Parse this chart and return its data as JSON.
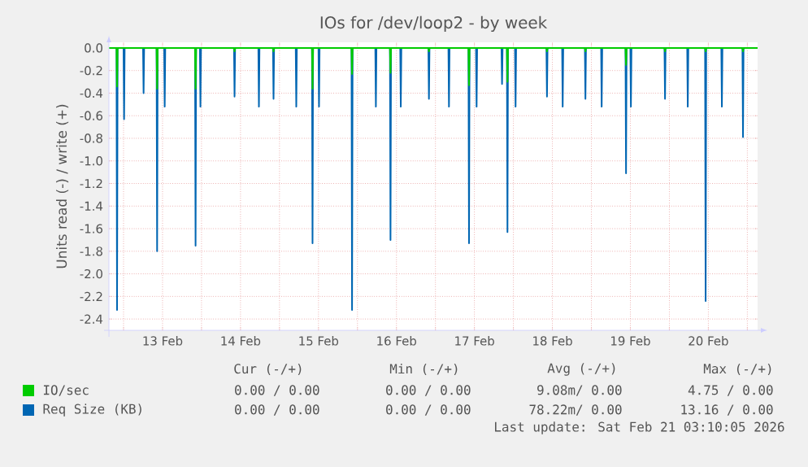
{
  "chart_data": {
    "type": "line",
    "title": "IOs for /dev/loop2 - by week",
    "ylabel": "Units read (-) / write (+)",
    "xlim": [
      "2026-02-12T19:30",
      "2026-02-21T03:10"
    ],
    "ylim": [
      -2.5,
      0.05
    ],
    "yticks": [
      {
        "value": 0,
        "label": "0.0"
      },
      -0.2,
      -0.4,
      -0.6,
      -0.8,
      {
        "value": -1,
        "label": "-1.0"
      },
      -1.2,
      -1.4,
      -1.6,
      -1.8,
      {
        "value": -2,
        "label": "-2.0"
      },
      -2.2,
      -2.4
    ],
    "xticks": [
      {
        "value": "2026-02-13T00:00",
        "label": null
      },
      {
        "value": "2026-02-13T12:00",
        "label": "13 Feb"
      },
      {
        "value": "2026-02-14T00:00",
        "label": null
      },
      {
        "value": "2026-02-14T12:00",
        "label": "14 Feb"
      },
      {
        "value": "2026-02-15T00:00",
        "label": null
      },
      {
        "value": "2026-02-15T12:00",
        "label": "15 Feb"
      },
      {
        "value": "2026-02-16T00:00",
        "label": null
      },
      {
        "value": "2026-02-16T12:00",
        "label": "16 Feb"
      },
      {
        "value": "2026-02-17T00:00",
        "label": null
      },
      {
        "value": "2026-02-17T12:00",
        "label": "17 Feb"
      },
      {
        "value": "2026-02-18T00:00",
        "label": null
      },
      {
        "value": "2026-02-18T12:00",
        "label": "18 Feb"
      },
      {
        "value": "2026-02-19T00:00",
        "label": null
      },
      {
        "value": "2026-02-19T12:00",
        "label": "19 Feb"
      },
      {
        "value": "2026-02-20T00:00",
        "label": null
      },
      {
        "value": "2026-02-20T12:00",
        "label": "20 Feb"
      },
      {
        "value": "2026-02-21T00:00",
        "label": null
      }
    ],
    "grid": true,
    "legend": "bottom",
    "line_style": "solid",
    "series": [
      {
        "name": "IO/sec",
        "color": "#00cc00",
        "x": [
          "2026-02-12T19:30",
          "2026-02-12T21:50",
          "2026-02-12T22:00",
          "2026-02-12T22:10",
          "2026-02-13T10:10",
          "2026-02-13T10:20",
          "2026-02-13T10:30",
          "2026-02-13T22:00",
          "2026-02-13T22:10",
          "2026-02-13T22:20",
          "2026-02-14T10:00",
          "2026-02-14T10:10",
          "2026-02-14T10:20",
          "2026-02-14T22:00",
          "2026-02-14T22:10",
          "2026-02-14T22:20",
          "2026-02-15T10:00",
          "2026-02-15T10:10",
          "2026-02-15T10:20",
          "2026-02-15T22:10",
          "2026-02-15T22:20",
          "2026-02-15T22:30",
          "2026-02-16T10:00",
          "2026-02-16T10:10",
          "2026-02-16T10:20",
          "2026-02-16T21:50",
          "2026-02-16T22:00",
          "2026-02-16T22:10",
          "2026-02-17T10:10",
          "2026-02-17T10:20",
          "2026-02-17T10:30",
          "2026-02-17T22:00",
          "2026-02-17T22:10",
          "2026-02-17T22:20",
          "2026-02-18T10:10",
          "2026-02-18T10:20",
          "2026-02-18T10:30",
          "2026-02-18T22:00",
          "2026-02-18T22:10",
          "2026-02-18T22:20",
          "2026-02-19T10:30",
          "2026-02-19T10:40",
          "2026-02-19T10:50",
          "2026-02-19T22:30",
          "2026-02-19T22:40",
          "2026-02-19T22:50",
          "2026-02-20T11:00",
          "2026-02-20T11:10",
          "2026-02-20T11:20",
          "2026-02-20T22:30",
          "2026-02-20T22:40",
          "2026-02-20T22:50",
          "2026-02-21T03:10"
        ],
        "values": [
          0,
          0,
          -0.34,
          0,
          0,
          -0.36,
          0,
          0,
          -0.36,
          0,
          0,
          -0.03,
          0,
          0,
          -0.03,
          0,
          0,
          -0.36,
          0,
          0,
          -0.23,
          0,
          0,
          -0.22,
          0,
          0,
          -0.03,
          0,
          0,
          -0.33,
          0,
          0,
          -0.3,
          0,
          0,
          -0.03,
          0,
          0,
          -0.03,
          0,
          0,
          -0.15,
          0,
          0,
          -0.03,
          0,
          0,
          -0.03,
          0,
          0,
          -0.03,
          0,
          0
        ]
      },
      {
        "name": "Req Size (KB)",
        "color": "#0066b3",
        "x": [
          "2026-02-12T19:30",
          "2026-02-12T21:50",
          "2026-02-12T22:00",
          "2026-02-12T22:10",
          "2026-02-13T00:00",
          "2026-02-13T00:10",
          "2026-02-13T00:20",
          "2026-02-13T06:00",
          "2026-02-13T06:10",
          "2026-02-13T06:20",
          "2026-02-13T10:10",
          "2026-02-13T10:20",
          "2026-02-13T10:30",
          "2026-02-13T12:30",
          "2026-02-13T12:40",
          "2026-02-13T12:50",
          "2026-02-13T22:00",
          "2026-02-13T22:10",
          "2026-02-13T22:20",
          "2026-02-13T23:30",
          "2026-02-13T23:40",
          "2026-02-13T23:50",
          "2026-02-14T10:00",
          "2026-02-14T10:10",
          "2026-02-14T10:20",
          "2026-02-14T17:30",
          "2026-02-14T17:40",
          "2026-02-14T17:50",
          "2026-02-14T22:00",
          "2026-02-14T22:10",
          "2026-02-14T22:20",
          "2026-02-15T05:00",
          "2026-02-15T05:10",
          "2026-02-15T05:20",
          "2026-02-15T10:00",
          "2026-02-15T10:10",
          "2026-02-15T10:20",
          "2026-02-15T12:00",
          "2026-02-15T12:10",
          "2026-02-15T12:20",
          "2026-02-15T22:10",
          "2026-02-15T22:20",
          "2026-02-15T22:30",
          "2026-02-16T05:30",
          "2026-02-16T05:40",
          "2026-02-16T05:50",
          "2026-02-16T10:00",
          "2026-02-16T10:10",
          "2026-02-16T10:20",
          "2026-02-16T13:10",
          "2026-02-16T13:20",
          "2026-02-16T13:30",
          "2026-02-16T21:50",
          "2026-02-16T22:00",
          "2026-02-16T22:10",
          "2026-02-17T04:00",
          "2026-02-17T04:10",
          "2026-02-17T04:20",
          "2026-02-17T10:10",
          "2026-02-17T10:20",
          "2026-02-17T10:30",
          "2026-02-17T12:30",
          "2026-02-17T12:40",
          "2026-02-17T12:50",
          "2026-02-17T20:20",
          "2026-02-17T20:30",
          "2026-02-17T20:40",
          "2026-02-17T22:00",
          "2026-02-17T22:10",
          "2026-02-17T22:20",
          "2026-02-18T00:30",
          "2026-02-18T00:40",
          "2026-02-18T00:50",
          "2026-02-18T10:10",
          "2026-02-18T10:20",
          "2026-02-18T10:30",
          "2026-02-18T15:00",
          "2026-02-18T15:10",
          "2026-02-18T15:20",
          "2026-02-18T22:00",
          "2026-02-18T22:10",
          "2026-02-18T22:20",
          "2026-02-19T03:00",
          "2026-02-19T03:10",
          "2026-02-19T03:20",
          "2026-02-19T10:30",
          "2026-02-19T10:40",
          "2026-02-19T10:50",
          "2026-02-19T12:00",
          "2026-02-19T12:10",
          "2026-02-19T12:20",
          "2026-02-19T22:30",
          "2026-02-19T22:40",
          "2026-02-19T22:50",
          "2026-02-20T05:30",
          "2026-02-20T05:40",
          "2026-02-20T05:50",
          "2026-02-20T11:00",
          "2026-02-20T11:10",
          "2026-02-20T11:20",
          "2026-02-20T16:00",
          "2026-02-20T16:10",
          "2026-02-20T16:20",
          "2026-02-20T22:30",
          "2026-02-20T22:40",
          "2026-02-20T22:50",
          "2026-02-21T03:10"
        ],
        "values": [
          0,
          0,
          -2.32,
          0,
          0,
          -0.63,
          0,
          0,
          -0.4,
          0,
          0,
          -1.8,
          0,
          0,
          -0.52,
          0,
          0,
          -1.75,
          0,
          0,
          -0.52,
          0,
          0,
          -0.43,
          0,
          0,
          -0.52,
          0,
          0,
          -0.45,
          0,
          0,
          -0.52,
          0,
          0,
          -1.73,
          0,
          0,
          -0.52,
          0,
          0,
          -2.32,
          0,
          0,
          -0.52,
          0,
          0,
          -1.7,
          0,
          0,
          -0.52,
          0,
          0,
          -0.45,
          0,
          0,
          -0.52,
          0,
          0,
          -1.73,
          0,
          0,
          -0.52,
          0,
          0,
          -0.32,
          0,
          0,
          -1.63,
          0,
          0,
          -0.52,
          0,
          0,
          -0.43,
          0,
          0,
          -0.52,
          0,
          0,
          -0.45,
          0,
          0,
          -0.52,
          0,
          0,
          -1.11,
          0,
          0,
          -0.52,
          0,
          0,
          -0.45,
          0,
          0,
          -0.52,
          0,
          0,
          -2.24,
          0,
          0,
          -0.52,
          0,
          0,
          -0.79,
          0,
          0
        ]
      }
    ],
    "annotations": [
      "Cur (-/+)",
      "Min (-/+)",
      "Avg (-/+)",
      "Max (-/+)",
      "0.00 / 0.00",
      "0.00 / 0.00",
      "9.08m/ 0.00",
      "4.75 / 0.00",
      "0.00 / 0.00",
      "0.00 / 0.00",
      "78.22m/ 0.00",
      "13.16 / 0.00",
      "Last update: Sat Feb 21 03:10:05 2026"
    ]
  }
}
